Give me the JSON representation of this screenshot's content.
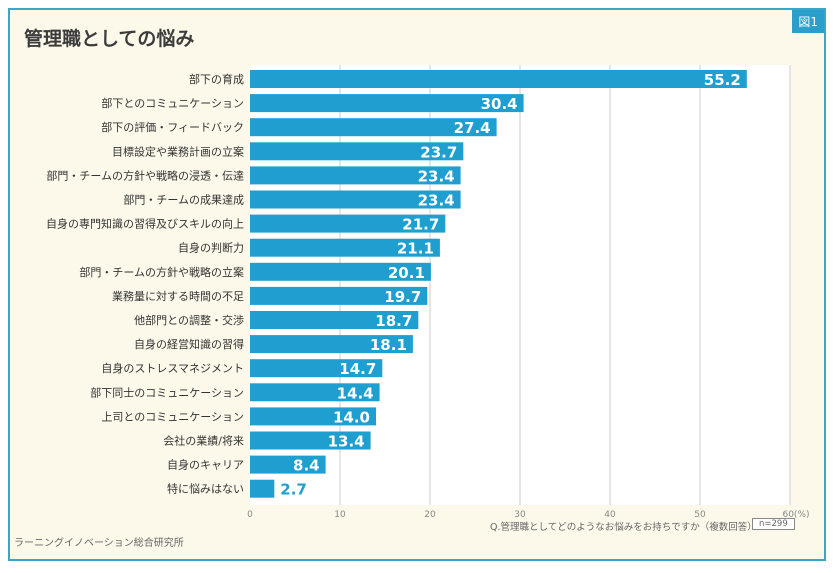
{
  "figure_label": "図1",
  "source": "ラーニングイノベーション総合研究所",
  "chart_data": {
    "type": "bar",
    "orientation": "horizontal",
    "title": "管理職としての悩み",
    "categories": [
      "部下の育成",
      "部下とのコミュニケーション",
      "部下の評価・フィードバック",
      "目標設定や業務計画の立案",
      "部門・チームの方針や戦略の浸透・伝達",
      "部門・チームの成果達成",
      "自身の専門知識の習得及びスキルの向上",
      "自身の判断力",
      "部門・チームの方針や戦略の立案",
      "業務量に対する時間の不足",
      "他部門との調整・交渉",
      "自身の経営知識の習得",
      "自身のストレスマネジメント",
      "部下同士のコミュニケーション",
      "上司とのコミュニケーション",
      "会社の業績/将来",
      "自身のキャリア",
      "特に悩みはない"
    ],
    "values": [
      55.2,
      30.4,
      27.4,
      23.7,
      23.4,
      23.4,
      21.7,
      21.1,
      20.1,
      19.7,
      18.7,
      18.1,
      14.7,
      14.4,
      14.0,
      13.4,
      8.4,
      2.7
    ],
    "value_labels": [
      "55.2",
      "30.4",
      "27.4",
      "23.7",
      "23.4",
      "23.4",
      "21.7",
      "21.1",
      "20.1",
      "19.7",
      "18.7",
      "18.1",
      "14.7",
      "14.4",
      "14.0",
      "13.4",
      "8.4",
      "2.7"
    ],
    "xlim": [
      0,
      60
    ],
    "xticks": [
      "0",
      "10",
      "20",
      "30",
      "40",
      "50",
      "60(%)"
    ],
    "grid": true,
    "question": "Q.管理職としてどのようなお悩みをお持ちですか（複数回答）",
    "n": "n=299",
    "bar_color": "#1e9fcf"
  }
}
